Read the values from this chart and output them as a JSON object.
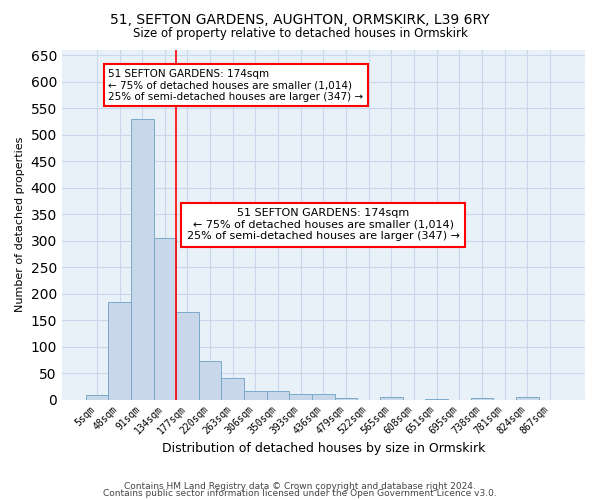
{
  "title1": "51, SEFTON GARDENS, AUGHTON, ORMSKIRK, L39 6RY",
  "title2": "Size of property relative to detached houses in Ormskirk",
  "xlabel": "Distribution of detached houses by size in Ormskirk",
  "ylabel": "Number of detached properties",
  "annotation_line1": "51 SEFTON GARDENS: 174sqm",
  "annotation_line2": "← 75% of detached houses are smaller (1,014)",
  "annotation_line3": "25% of semi-detached houses are larger (347) →",
  "bin_labels": [
    "5sqm",
    "48sqm",
    "91sqm",
    "134sqm",
    "177sqm",
    "220sqm",
    "263sqm",
    "306sqm",
    "350sqm",
    "393sqm",
    "436sqm",
    "479sqm",
    "522sqm",
    "565sqm",
    "608sqm",
    "651sqm",
    "695sqm",
    "738sqm",
    "781sqm",
    "824sqm",
    "867sqm"
  ],
  "bar_heights": [
    8,
    185,
    530,
    305,
    165,
    73,
    40,
    17,
    17,
    10,
    10,
    3,
    0,
    5,
    0,
    2,
    0,
    3,
    0,
    5,
    0
  ],
  "bar_color": "#c8d8ea",
  "bar_edge_color": "#7aaac8",
  "red_line_x": 4.0,
  "ylim": [
    0,
    660
  ],
  "yticks": [
    0,
    50,
    100,
    150,
    200,
    250,
    300,
    350,
    400,
    450,
    500,
    550,
    600,
    650
  ],
  "grid_color": "#c8d8ea",
  "background_color": "#e8f0f8",
  "footer1": "Contains HM Land Registry data © Crown copyright and database right 2024.",
  "footer2": "Contains public sector information licensed under the Open Government Licence v3.0."
}
